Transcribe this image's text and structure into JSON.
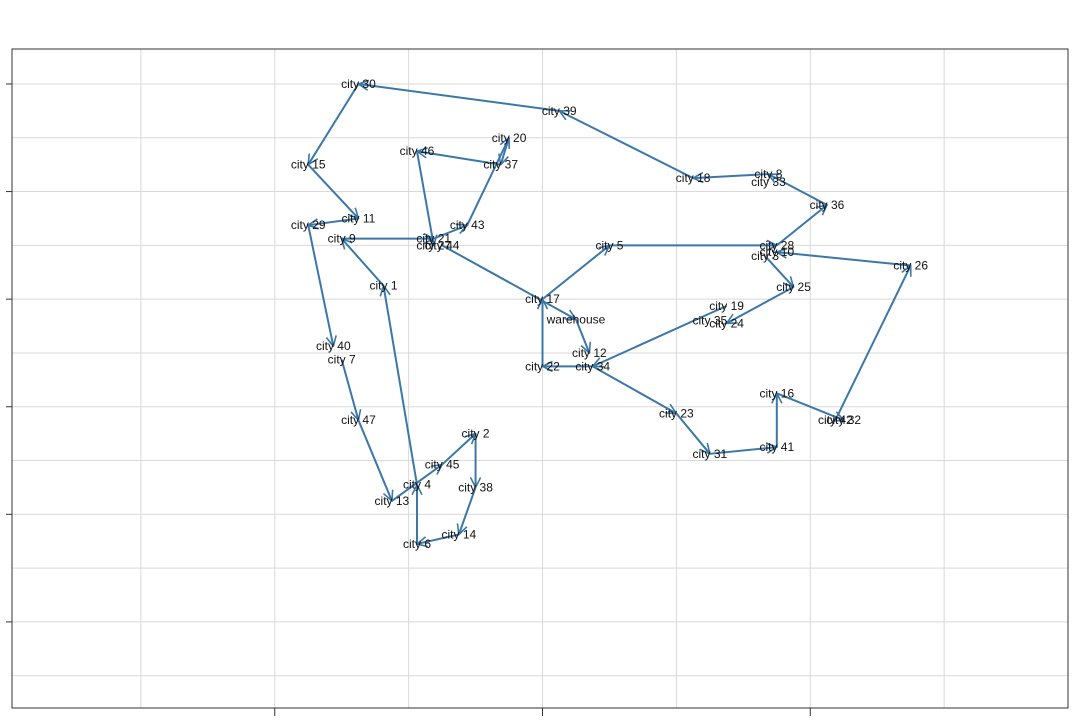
{
  "chart_data": {
    "type": "line",
    "title": "",
    "xlabel": "",
    "ylabel": "",
    "xlim": [
      -8.7,
      54.4
    ],
    "ylim": [
      -6.4,
      42.6
    ],
    "x_ticks": [
      7,
      23,
      39,
      55
    ],
    "y_ticks": [
      0,
      8,
      16,
      24,
      32,
      40
    ],
    "grid": true,
    "legend": "none",
    "colors": {
      "route": "#3c77a8",
      "grid": "#d9d9d9",
      "frame": "#333333",
      "label": "#111111"
    },
    "nodes": [
      {
        "name": "city 30",
        "x": 12,
        "y": 40
      },
      {
        "name": "city 39",
        "x": 24,
        "y": 38
      },
      {
        "name": "city 18",
        "x": 32,
        "y": 33
      },
      {
        "name": "city 8",
        "x": 36.5,
        "y": 33.3
      },
      {
        "name": "city 33",
        "x": 36.5,
        "y": 32.7
      },
      {
        "name": "city 36",
        "x": 40,
        "y": 31
      },
      {
        "name": "city 28",
        "x": 37,
        "y": 28
      },
      {
        "name": "city 5",
        "x": 27,
        "y": 28
      },
      {
        "name": "city 17",
        "x": 23,
        "y": 24
      },
      {
        "name": "city 22",
        "x": 23,
        "y": 19
      },
      {
        "name": "city 34",
        "x": 26,
        "y": 19
      },
      {
        "name": "city 35",
        "x": 33,
        "y": 22.4
      },
      {
        "name": "city 19",
        "x": 34,
        "y": 23.5
      },
      {
        "name": "city 24",
        "x": 34,
        "y": 22.2
      },
      {
        "name": "city 25",
        "x": 38,
        "y": 24.9
      },
      {
        "name": "city 10",
        "x": 37,
        "y": 27.5
      },
      {
        "name": "city 3",
        "x": 36.3,
        "y": 27.2
      },
      {
        "name": "city 26",
        "x": 45,
        "y": 26.5
      },
      {
        "name": "city 32",
        "x": 41,
        "y": 15
      },
      {
        "name": "city 42",
        "x": 40.5,
        "y": 15
      },
      {
        "name": "city 16",
        "x": 37,
        "y": 17
      },
      {
        "name": "city 41",
        "x": 37,
        "y": 13
      },
      {
        "name": "city 31",
        "x": 33,
        "y": 12.5
      },
      {
        "name": "city 23",
        "x": 31,
        "y": 15.5
      },
      {
        "name": "city 12",
        "x": 25.8,
        "y": 20
      },
      {
        "name": "warehouse",
        "x": 25,
        "y": 22.5
      },
      {
        "name": "city 27",
        "x": 16.5,
        "y": 28
      },
      {
        "name": "city 44",
        "x": 17,
        "y": 28
      },
      {
        "name": "city 21",
        "x": 16.5,
        "y": 28.5
      },
      {
        "name": "city 9",
        "x": 11,
        "y": 28.5
      },
      {
        "name": "city 29",
        "x": 9,
        "y": 29.5
      },
      {
        "name": "city 11",
        "x": 12,
        "y": 30
      },
      {
        "name": "city 15",
        "x": 9,
        "y": 34
      },
      {
        "name": "city 40",
        "x": 10.5,
        "y": 20.5
      },
      {
        "name": "city 7",
        "x": 11,
        "y": 19.5
      },
      {
        "name": "city 47",
        "x": 12,
        "y": 15
      },
      {
        "name": "city 13",
        "x": 14,
        "y": 9
      },
      {
        "name": "city 4",
        "x": 15.5,
        "y": 10.2
      },
      {
        "name": "city 45",
        "x": 17,
        "y": 11.7
      },
      {
        "name": "city 2",
        "x": 19,
        "y": 14
      },
      {
        "name": "city 38",
        "x": 19,
        "y": 10
      },
      {
        "name": "city 14",
        "x": 18,
        "y": 6.5
      },
      {
        "name": "city 6",
        "x": 15.5,
        "y": 5.8
      },
      {
        "name": "city 1",
        "x": 13.5,
        "y": 25
      },
      {
        "name": "city 43",
        "x": 18.5,
        "y": 29.5
      },
      {
        "name": "city 20",
        "x": 21,
        "y": 36
      },
      {
        "name": "city 37",
        "x": 20.5,
        "y": 34
      },
      {
        "name": "city 46",
        "x": 15.5,
        "y": 35
      }
    ],
    "arrows": [
      [
        "warehouse",
        "city 12"
      ],
      [
        "city 34",
        "city 23"
      ],
      [
        "city 23",
        "city 31"
      ],
      [
        "city 31",
        "city 41"
      ],
      [
        "city 41",
        "city 16"
      ],
      [
        "city 16",
        "city 32"
      ],
      [
        "city 42",
        "city 26"
      ],
      [
        "city 26",
        "city 10"
      ],
      [
        "city 3",
        "city 25"
      ],
      [
        "city 25",
        "city 24"
      ],
      [
        "city 19",
        "city 34"
      ],
      [
        "city 22",
        "city 17"
      ],
      [
        "city 17",
        "city 5"
      ],
      [
        "city 5",
        "city 28"
      ],
      [
        "city 28",
        "city 36"
      ],
      [
        "city 36",
        "city 8"
      ],
      [
        "city 8",
        "city 18"
      ],
      [
        "city 18",
        "city 39"
      ],
      [
        "city 39",
        "city 30"
      ],
      [
        "city 30",
        "city 15"
      ],
      [
        "city 15",
        "city 11"
      ],
      [
        "city 11",
        "city 29"
      ],
      [
        "city 29",
        "city 40"
      ],
      [
        "city 7",
        "city 47"
      ],
      [
        "city 47",
        "city 13"
      ],
      [
        "city 13",
        "city 45"
      ],
      [
        "city 45",
        "city 2"
      ],
      [
        "city 2",
        "city 38"
      ],
      [
        "city 38",
        "city 14"
      ],
      [
        "city 14",
        "city 6"
      ],
      [
        "city 6",
        "city 4"
      ],
      [
        "city 4",
        "city 1"
      ],
      [
        "city 1",
        "city 9"
      ],
      [
        "city 9",
        "city 21"
      ],
      [
        "city 21",
        "city 43"
      ],
      [
        "city 43",
        "city 20"
      ],
      [
        "city 20",
        "city 37"
      ],
      [
        "city 37",
        "city 46"
      ],
      [
        "city 46",
        "city 27"
      ],
      [
        "city 44",
        "warehouse"
      ],
      [
        "city 34",
        "city 22"
      ]
    ]
  }
}
